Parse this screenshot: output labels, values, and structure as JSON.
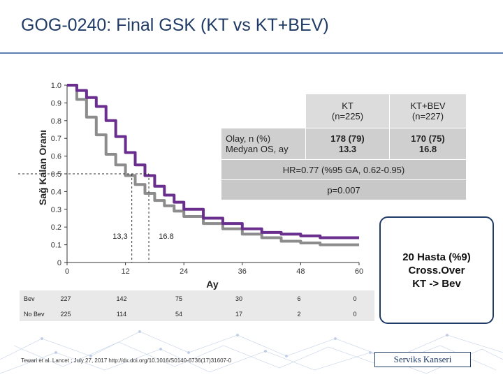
{
  "slide_title": "GOG-0240: Final GSK (KT vs KT+BEV)",
  "colors": {
    "kt": "#8c8c8c",
    "kt_bev": "#6a2f8e",
    "title": "#1f3b66"
  },
  "chart_data": {
    "type": "line",
    "title": "",
    "xlabel": "Ay",
    "ylabel": "Sağ Kalan Oranı",
    "xlim": [
      0,
      60
    ],
    "ylim": [
      0,
      1.0
    ],
    "x_ticks": [
      0,
      12,
      24,
      36,
      48,
      60
    ],
    "x_tick_labels": [
      "0",
      "12",
      "24",
      "36",
      "48",
      "60"
    ],
    "y_ticks": [
      0,
      0.1,
      0.2,
      0.3,
      0.4,
      0.5,
      0.6,
      0.7,
      0.8,
      0.9,
      1.0
    ],
    "y_tick_labels": [
      "0",
      "0.1",
      "0.2",
      "0.3",
      "0.4",
      "0.5",
      "0.6",
      "0.7",
      "0.8",
      "0.9",
      "1.0"
    ],
    "series": [
      {
        "name": "KT",
        "color": "#8c8c8c",
        "x": [
          0,
          2,
          4,
          6,
          8,
          10,
          12,
          14,
          16,
          18,
          20,
          22,
          24,
          28,
          32,
          36,
          40,
          44,
          48,
          52,
          56,
          60
        ],
        "y": [
          1.0,
          0.92,
          0.82,
          0.72,
          0.61,
          0.55,
          0.49,
          0.44,
          0.39,
          0.35,
          0.32,
          0.29,
          0.26,
          0.22,
          0.19,
          0.16,
          0.14,
          0.12,
          0.11,
          0.1,
          0.1,
          0.1
        ]
      },
      {
        "name": "KT+BEV",
        "color": "#6a2f8e",
        "x": [
          0,
          2,
          4,
          6,
          8,
          10,
          12,
          14,
          16,
          18,
          20,
          22,
          24,
          28,
          32,
          36,
          40,
          44,
          48,
          52,
          56,
          60
        ],
        "y": [
          1.0,
          0.97,
          0.93,
          0.88,
          0.8,
          0.71,
          0.62,
          0.55,
          0.49,
          0.43,
          0.38,
          0.34,
          0.3,
          0.25,
          0.22,
          0.19,
          0.17,
          0.16,
          0.15,
          0.14,
          0.14,
          0.14
        ]
      }
    ],
    "median_lines": {
      "y": 0.5,
      "x_values": [
        13.3,
        16.8
      ]
    },
    "annotations": {
      "median_kt": "13,3",
      "median_bev": "16.8"
    }
  },
  "stats_table": {
    "header_kt": "KT\n(n=225)",
    "header_bev": "KT+BEV\n(n=227)",
    "row_label": "Olay, n (%)\nMedyan OS, ay",
    "kt_value": "178 (79)\n13.3",
    "bev_value": "170 (75)\n16.8",
    "hr": "HR=0.77 (%95 GA, 0.62-0.95)",
    "p": "p=0.007"
  },
  "risk_table": {
    "rows": [
      {
        "label": "Bev",
        "values": [
          "227",
          "142",
          "75",
          "30",
          "6",
          "0"
        ]
      },
      {
        "label": "No Bev",
        "values": [
          "225",
          "114",
          "54",
          "17",
          "2",
          "0"
        ]
      }
    ]
  },
  "callout_text": "20 Hasta (%9)\nCross.Over\nKT -> Bev",
  "reference": "Tewari et al. Lancet ; July 27, 2017 http://dx.doi.org/10.1016/S0140-6736(17)31607-0",
  "brand_label": "Serviks Kanseri"
}
